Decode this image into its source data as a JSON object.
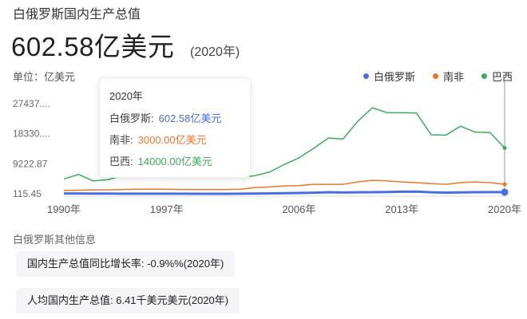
{
  "heading": "白俄罗斯国内生产总值",
  "headline": {
    "value": "602.58亿美元",
    "year": "(2020年)"
  },
  "unit": "单位：亿美元",
  "legend": [
    {
      "name": "白俄罗斯",
      "color": "#4a6ee0"
    },
    {
      "name": "南非",
      "color": "#e8772e"
    },
    {
      "name": "巴西",
      "color": "#3daa5c"
    }
  ],
  "tooltip": {
    "title": "2020年",
    "rows": [
      {
        "label": "白俄罗斯:",
        "value": "602.58亿美元",
        "color": "#4a6ee0"
      },
      {
        "label": "南非:",
        "value": "3000.00亿美元",
        "color": "#e8772e"
      },
      {
        "label": "巴西:",
        "value": "14000.00亿美元",
        "color": "#3daa5c"
      }
    ]
  },
  "chart_data": {
    "type": "line",
    "x": [
      1990,
      1991,
      1992,
      1993,
      1994,
      1995,
      1996,
      1997,
      1998,
      1999,
      2000,
      2001,
      2002,
      2003,
      2004,
      2005,
      2006,
      2007,
      2008,
      2009,
      2010,
      2011,
      2012,
      2013,
      2014,
      2015,
      2016,
      2017,
      2018,
      2019,
      2020
    ],
    "x_ticks": [
      "1990年",
      "1997年",
      "2006年",
      "2013年",
      "2020年"
    ],
    "x_tick_values": [
      1990,
      1997,
      2006,
      2013,
      2020
    ],
    "y_ticks": [
      "27437....",
      "18330....",
      "9222.87",
      "115.45"
    ],
    "y_tick_values": [
      27437,
      18330,
      9222.87,
      115.45
    ],
    "ylim": [
      115.45,
      27437
    ],
    "series": [
      {
        "name": "白俄罗斯",
        "color": "#4a6ee0",
        "values": [
          200,
          200,
          180,
          180,
          150,
          140,
          150,
          150,
          160,
          130,
          130,
          130,
          150,
          180,
          230,
          300,
          370,
          450,
          600,
          500,
          560,
          600,
          650,
          750,
          780,
          560,
          470,
          540,
          600,
          640,
          602.58
        ]
      },
      {
        "name": "南非",
        "color": "#e8772e",
        "values": [
          1100,
          1200,
          1300,
          1300,
          1400,
          1500,
          1500,
          1500,
          1400,
          1400,
          1400,
          1400,
          1500,
          2000,
          2200,
          2500,
          2600,
          3000,
          3000,
          3000,
          3700,
          4200,
          4000,
          3700,
          3500,
          3200,
          3000,
          3500,
          3700,
          3500,
          3000
        ]
      },
      {
        "name": "巴西",
        "color": "#3daa5c",
        "values": [
          4600,
          6000,
          4000,
          4400,
          5600,
          7800,
          8500,
          8800,
          8600,
          6000,
          6500,
          5600,
          5100,
          5600,
          6700,
          9000,
          11000,
          13900,
          17000,
          16700,
          22100,
          26200,
          24700,
          24700,
          24600,
          18000,
          17900,
          20600,
          18800,
          18700,
          14000
        ]
      }
    ]
  },
  "other_info": {
    "title": "白俄罗斯其他信息",
    "items": [
      "国内生产总值同比增长率: -0.9%%(2020年)",
      "人均国内生产总值: 6.41千美元美元(2020年)"
    ]
  }
}
